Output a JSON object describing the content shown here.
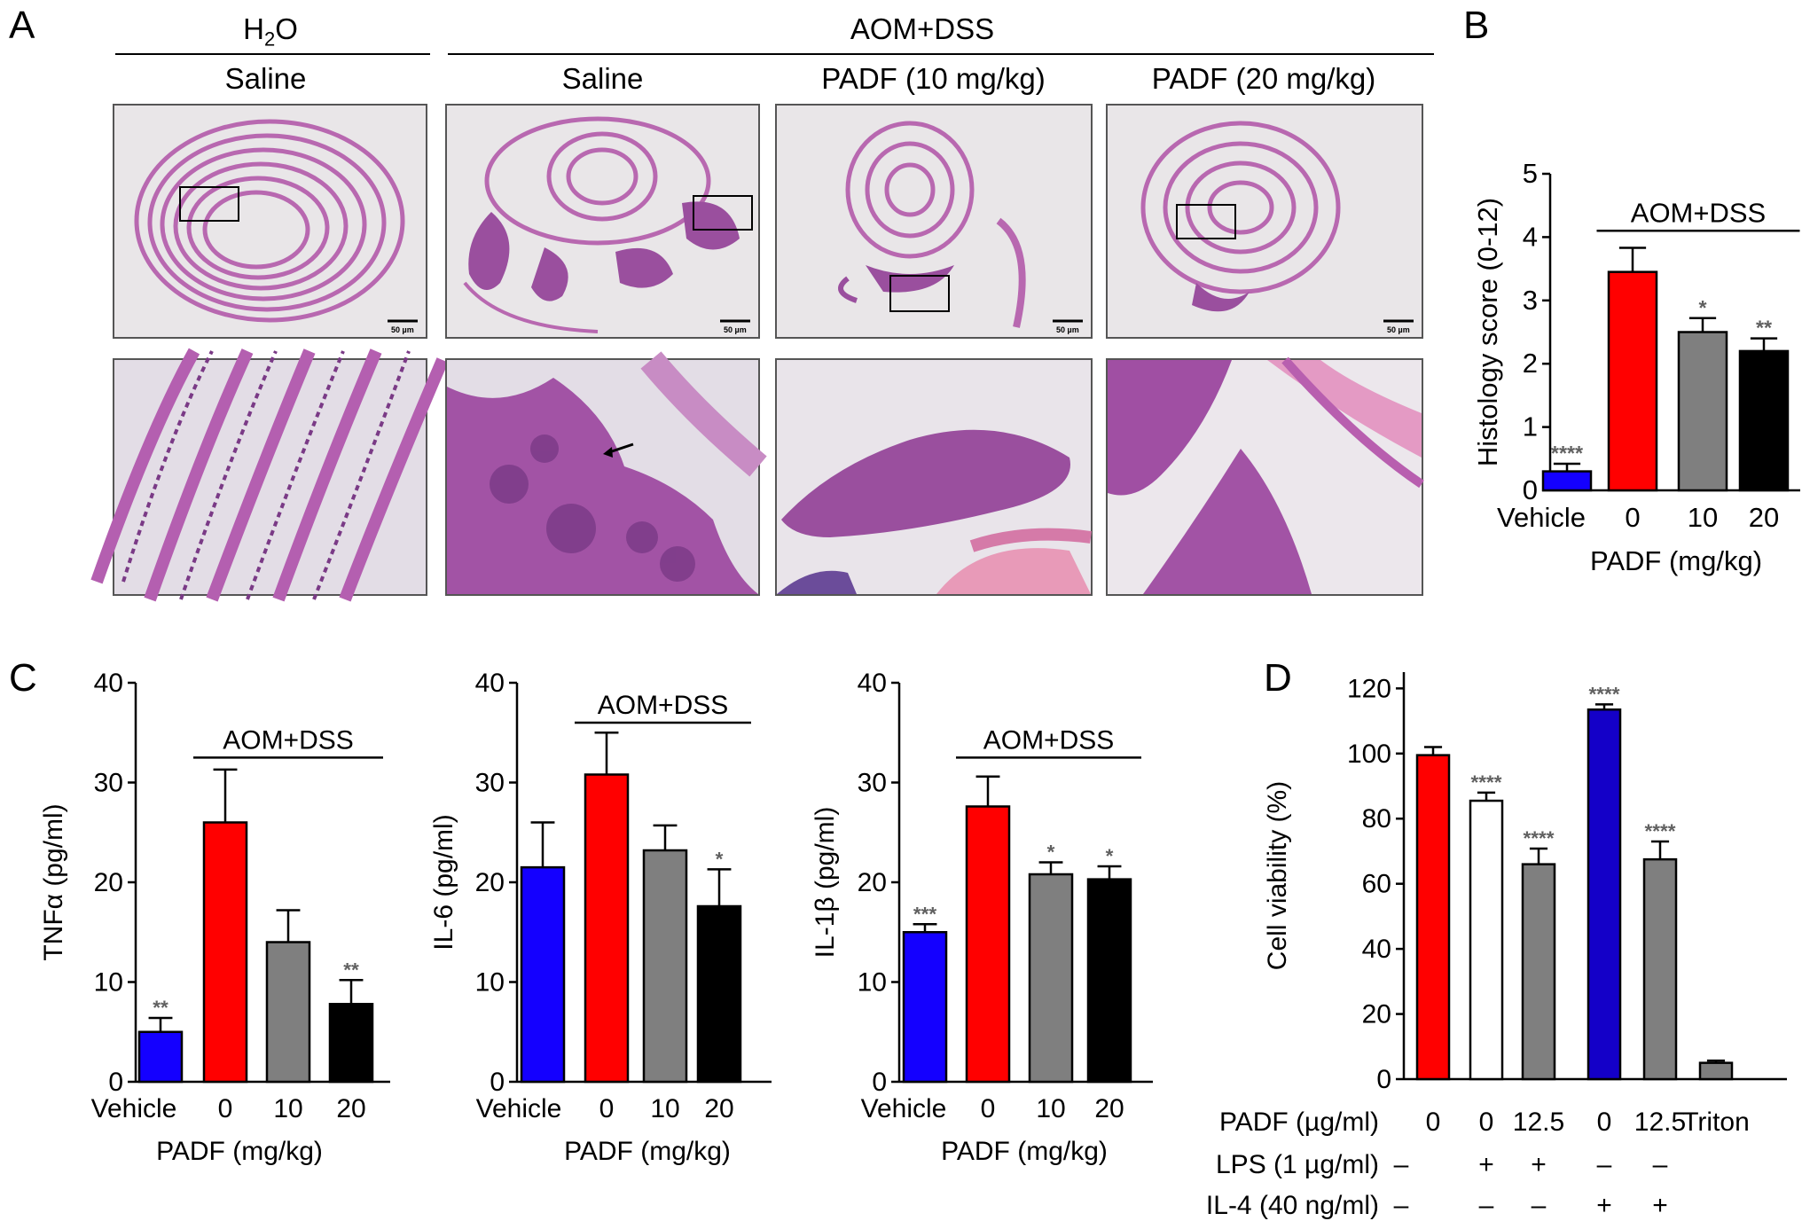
{
  "panels": {
    "A": "A",
    "B": "B",
    "C": "C",
    "D": "D"
  },
  "panelA": {
    "group1": "H2O",
    "group2": "AOM+DSS",
    "columns": [
      "Saline",
      "Saline",
      "PADF (10 mg/kg)",
      "PADF (20 mg/kg)"
    ],
    "scale_bar": "50 µm",
    "colors": {
      "tissue": "#b868b0",
      "background": "#e9e6e8",
      "dark": "#7a3a86"
    }
  },
  "chart_data": [
    {
      "id": "B",
      "type": "bar",
      "ylabel": "Histology score (0-12)",
      "ylim": [
        0,
        5
      ],
      "yticks": [
        0,
        1,
        2,
        3,
        4,
        5
      ],
      "categories": [
        "Vehicle",
        "0",
        "10",
        "20"
      ],
      "values": [
        0.3,
        3.45,
        2.5,
        2.2
      ],
      "errors": [
        0.12,
        0.38,
        0.22,
        0.2
      ],
      "significance": [
        "****",
        "",
        "*",
        "**"
      ],
      "colors": [
        "#1400ff",
        "#ff0000",
        "#7f7f7f",
        "#000000"
      ],
      "bracket_label": "AOM+DSS",
      "xlabel": "PADF (mg/kg)"
    },
    {
      "id": "C1",
      "type": "bar",
      "ylabel": "TNFα (pg/ml)",
      "ylim": [
        0,
        40
      ],
      "yticks": [
        0,
        10,
        20,
        30,
        40
      ],
      "categories": [
        "Vehicle",
        "0",
        "10",
        "20"
      ],
      "values": [
        5.0,
        26.0,
        14.0,
        7.8
      ],
      "errors": [
        1.4,
        5.3,
        3.2,
        2.4
      ],
      "significance": [
        "**",
        "",
        "",
        "**"
      ],
      "colors": [
        "#1400ff",
        "#ff0000",
        "#7f7f7f",
        "#000000"
      ],
      "bracket_label": "AOM+DSS",
      "xlabel": "PADF (mg/kg)"
    },
    {
      "id": "C2",
      "type": "bar",
      "ylabel": "IL-6 (pg/ml)",
      "ylim": [
        0,
        40
      ],
      "yticks": [
        0,
        10,
        20,
        30,
        40
      ],
      "categories": [
        "Vehicle",
        "0",
        "10",
        "20"
      ],
      "values": [
        21.5,
        30.8,
        23.2,
        17.6
      ],
      "errors": [
        4.5,
        4.2,
        2.5,
        3.7
      ],
      "significance": [
        "",
        "",
        "",
        "*"
      ],
      "colors": [
        "#1400ff",
        "#ff0000",
        "#7f7f7f",
        "#000000"
      ],
      "bracket_label": "AOM+DSS",
      "xlabel": "PADF (mg/kg)"
    },
    {
      "id": "C3",
      "type": "bar",
      "ylabel": "IL-1β (pg/ml)",
      "ylim": [
        0,
        40
      ],
      "yticks": [
        0,
        10,
        20,
        30,
        40
      ],
      "categories": [
        "Vehicle",
        "0",
        "10",
        "20"
      ],
      "values": [
        15.0,
        27.6,
        20.8,
        20.3
      ],
      "errors": [
        0.8,
        3.0,
        1.2,
        1.3
      ],
      "significance": [
        "***",
        "",
        "*",
        "*"
      ],
      "colors": [
        "#1400ff",
        "#ff0000",
        "#7f7f7f",
        "#000000"
      ],
      "bracket_label": "AOM+DSS",
      "xlabel": "PADF (mg/kg)"
    },
    {
      "id": "D",
      "type": "bar",
      "ylabel": "Cell viability (%)",
      "ylim": [
        0,
        125
      ],
      "yticks": [
        0,
        20,
        40,
        60,
        80,
        100,
        120
      ],
      "row_labels": [
        "PADF (µg/ml)",
        "LPS (1 µg/ml)",
        "IL-4 (40 ng/ml)"
      ],
      "categories": [
        "0",
        "0",
        "12.5",
        "0",
        "12.5",
        "Triton"
      ],
      "lps": [
        "–",
        "+",
        "+",
        "–",
        "–",
        ""
      ],
      "il4": [
        "–",
        "–",
        "–",
        "+",
        "+",
        ""
      ],
      "values": [
        99.5,
        85.5,
        66.0,
        113.5,
        67.5,
        5.0
      ],
      "errors": [
        2.5,
        2.5,
        4.8,
        1.6,
        5.5,
        0.7
      ],
      "significance": [
        "",
        "****",
        "****",
        "****",
        "****",
        ""
      ],
      "colors": [
        "#ff0000",
        "#ffffff",
        "#7f7f7f",
        "#1400c8",
        "#7f7f7f",
        "#7f7f7f"
      ]
    }
  ]
}
